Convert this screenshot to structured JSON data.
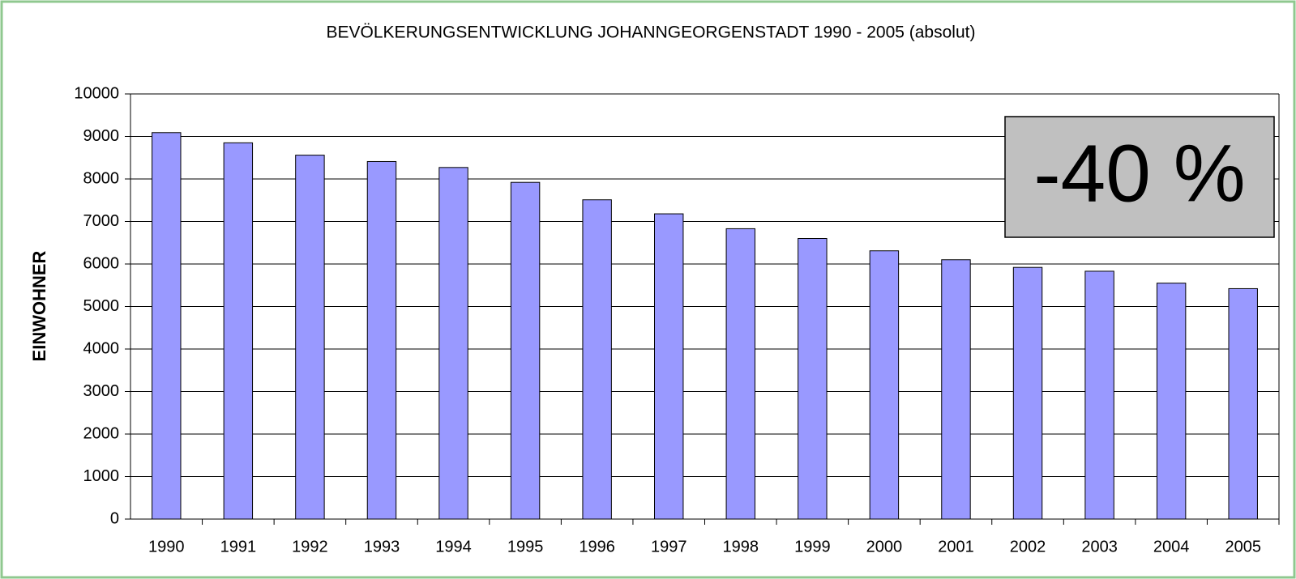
{
  "chart_data": {
    "type": "bar",
    "title": "BEVÖLKERUNGSENTWICKLUNG JOHANNGEORGENSTADT  1990 - 2005 (absolut)",
    "y_label": "EINWOHNER",
    "annotation": "-40 %",
    "categories": [
      "1990",
      "1991",
      "1992",
      "1993",
      "1994",
      "1995",
      "1996",
      "1997",
      "1998",
      "1999",
      "2000",
      "2001",
      "2002",
      "2003",
      "2004",
      "2005"
    ],
    "values": [
      9090,
      8850,
      8560,
      8410,
      8270,
      7920,
      7510,
      7180,
      6830,
      6600,
      6310,
      6100,
      5920,
      5830,
      5550,
      5420
    ],
    "color": "#9999ff",
    "ylim": [
      0,
      10000
    ],
    "yticks": [
      0,
      1000,
      2000,
      3000,
      4000,
      5000,
      6000,
      7000,
      8000,
      9000,
      10000
    ],
    "grid": true
  }
}
